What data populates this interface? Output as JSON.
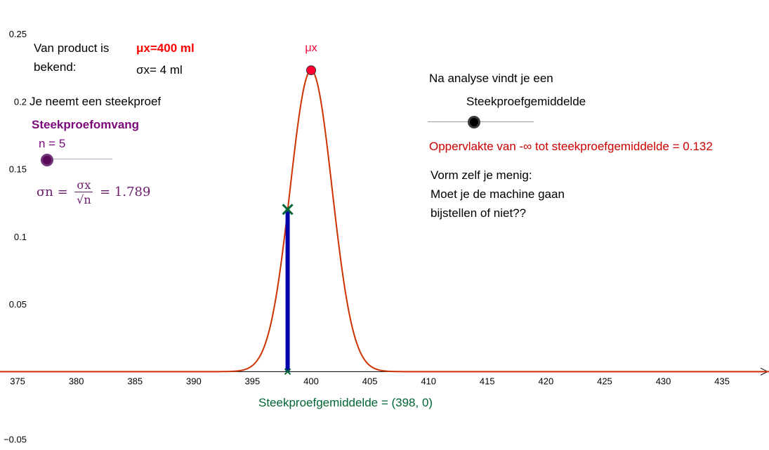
{
  "info": {
    "line1": "Van product is",
    "line2": "bekend:",
    "mu": "μx=400 ml",
    "sigma": "σx= 4 ml",
    "sample_intro": "Je neemt een steekproef",
    "size_label": "Steekproefomvang",
    "n_text": "n = 5"
  },
  "formula": {
    "lhs": "σn =",
    "numerator": "σx",
    "denominator": "√n",
    "rhs": "= 1.789"
  },
  "right_panel": {
    "analysis": "Na analyse vindt je een",
    "slider_label": "Steekproefgemiddelde",
    "area_text": "Oppervlakte van -∞ tot steekproefgemiddelde = 0.132",
    "question1": "Vorm zelf je menig:",
    "question2": "Moet je de machine gaan",
    "question3": "bijstellen of niet??"
  },
  "point_label": "Steekproefgemiddelde = (398, 0)",
  "sliders": {
    "n": {
      "value": 5,
      "min": 1,
      "max": 100
    },
    "sample_mean": {
      "value": 398,
      "min": 390,
      "max": 410
    }
  },
  "colors": {
    "curve": "#cc3300",
    "bar": "#0000aa",
    "marker": "#006633",
    "peak": "#ff0033",
    "red_text": "#ff0000",
    "purple": "#7a0a7a",
    "area_text": "#cc0000"
  },
  "chart_data": {
    "type": "line",
    "series": [
      {
        "mu": 400,
        "sigma": 1.789
      }
    ],
    "x_ticks": [
      375,
      380,
      385,
      390,
      395,
      400,
      405,
      410,
      415,
      420,
      425,
      430,
      435
    ],
    "y_ticks": [
      -0.05,
      0.05,
      0.1,
      0.15,
      0.2,
      0.25
    ],
    "xlim": [
      373.5,
      439
    ],
    "ylim": [
      -0.058,
      0.275
    ],
    "peak": {
      "x": 400,
      "y": 0.223,
      "label": "μx"
    },
    "sample_mean": {
      "x": 398,
      "density": 0.12
    },
    "grid": false
  }
}
